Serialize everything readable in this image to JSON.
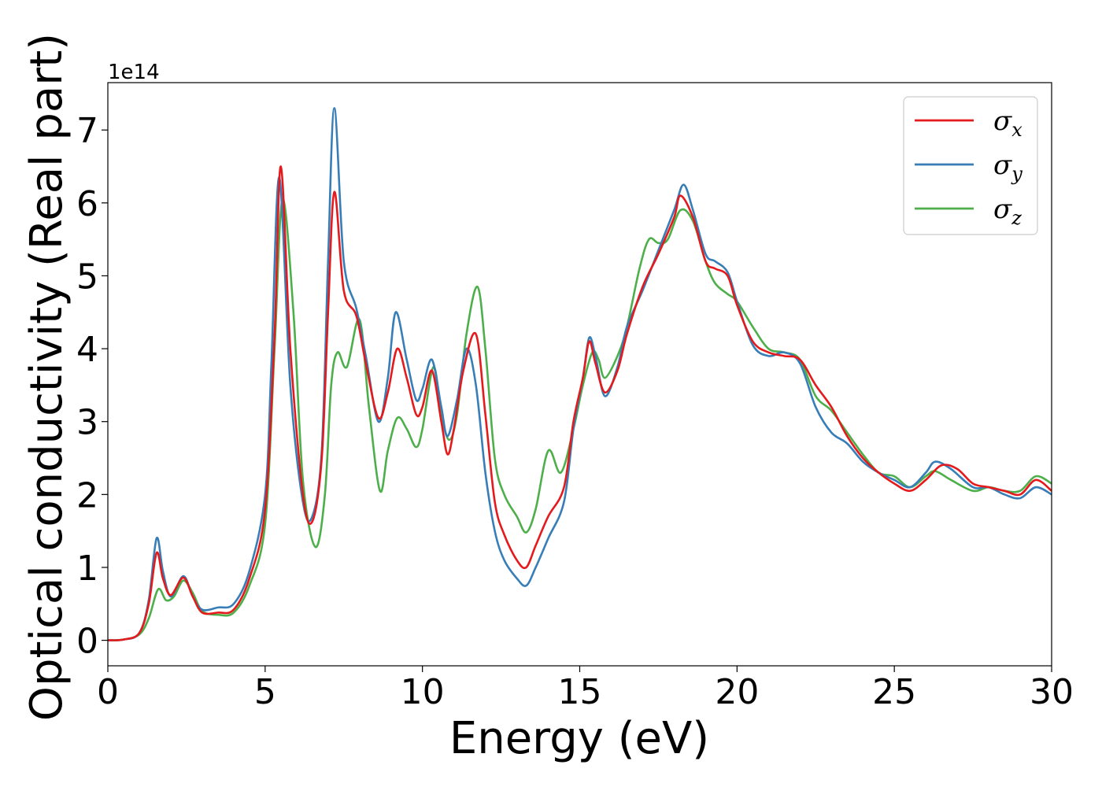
{
  "chart_data": {
    "type": "line",
    "title": "",
    "xlabel": "Energy (eV)",
    "ylabel": "Optical conductivity (Real part)",
    "y_offset_label": "1e14",
    "xlim": [
      0,
      30
    ],
    "ylim": [
      -0.35,
      7.65
    ],
    "xticks": [
      0,
      5,
      10,
      15,
      20,
      25,
      30
    ],
    "xtick_labels": [
      "0",
      "5",
      "10",
      "15",
      "20",
      "25",
      "30"
    ],
    "yticks": [
      0,
      1,
      2,
      3,
      4,
      5,
      6,
      7
    ],
    "ytick_labels": [
      "0",
      "1",
      "2",
      "3",
      "4",
      "5",
      "6",
      "7"
    ],
    "grid": false,
    "legend_position": "top-right",
    "series": [
      {
        "name": "σx",
        "symbol": "σ",
        "sub": "x",
        "color": "#e41a1c",
        "points": [
          [
            0,
            0
          ],
          [
            0.5,
            0.01
          ],
          [
            1.0,
            0.1
          ],
          [
            1.3,
            0.5
          ],
          [
            1.55,
            1.2
          ],
          [
            1.75,
            0.85
          ],
          [
            2.0,
            0.62
          ],
          [
            2.4,
            0.86
          ],
          [
            2.7,
            0.6
          ],
          [
            3.0,
            0.38
          ],
          [
            3.5,
            0.38
          ],
          [
            4.0,
            0.42
          ],
          [
            4.5,
            0.85
          ],
          [
            5.0,
            1.8
          ],
          [
            5.3,
            4.2
          ],
          [
            5.5,
            6.5
          ],
          [
            5.8,
            4.0
          ],
          [
            6.2,
            2.0
          ],
          [
            6.5,
            1.63
          ],
          [
            6.8,
            2.5
          ],
          [
            7.0,
            4.5
          ],
          [
            7.2,
            6.15
          ],
          [
            7.5,
            4.8
          ],
          [
            7.9,
            4.45
          ],
          [
            8.2,
            3.8
          ],
          [
            8.6,
            3.05
          ],
          [
            8.9,
            3.4
          ],
          [
            9.2,
            4.0
          ],
          [
            9.5,
            3.6
          ],
          [
            9.8,
            3.1
          ],
          [
            10.0,
            3.2
          ],
          [
            10.3,
            3.7
          ],
          [
            10.6,
            3.0
          ],
          [
            10.8,
            2.55
          ],
          [
            11.0,
            2.9
          ],
          [
            11.3,
            3.7
          ],
          [
            11.7,
            4.2
          ],
          [
            12.0,
            3.1
          ],
          [
            12.3,
            1.9
          ],
          [
            12.6,
            1.45
          ],
          [
            13.0,
            1.1
          ],
          [
            13.3,
            1.0
          ],
          [
            13.6,
            1.3
          ],
          [
            14.0,
            1.7
          ],
          [
            14.5,
            2.1
          ],
          [
            14.8,
            3.0
          ],
          [
            15.1,
            3.6
          ],
          [
            15.3,
            4.1
          ],
          [
            15.5,
            3.8
          ],
          [
            15.8,
            3.4
          ],
          [
            16.2,
            3.7
          ],
          [
            16.5,
            4.2
          ],
          [
            17.0,
            4.85
          ],
          [
            17.5,
            5.3
          ],
          [
            18.0,
            5.8
          ],
          [
            18.2,
            6.1
          ],
          [
            18.6,
            5.8
          ],
          [
            19.0,
            5.2
          ],
          [
            19.3,
            5.1
          ],
          [
            19.7,
            5.0
          ],
          [
            20.0,
            4.6
          ],
          [
            20.5,
            4.1
          ],
          [
            21.0,
            3.95
          ],
          [
            21.5,
            3.9
          ],
          [
            22.0,
            3.85
          ],
          [
            22.5,
            3.5
          ],
          [
            23.0,
            3.2
          ],
          [
            23.5,
            2.8
          ],
          [
            24.0,
            2.5
          ],
          [
            24.5,
            2.3
          ],
          [
            25.0,
            2.15
          ],
          [
            25.5,
            2.05
          ],
          [
            26.0,
            2.2
          ],
          [
            26.5,
            2.4
          ],
          [
            27.0,
            2.35
          ],
          [
            27.5,
            2.15
          ],
          [
            28.0,
            2.1
          ],
          [
            28.5,
            2.05
          ],
          [
            29.0,
            2.0
          ],
          [
            29.5,
            2.2
          ],
          [
            30.0,
            2.05
          ]
        ]
      },
      {
        "name": "σy",
        "symbol": "σ",
        "sub": "y",
        "color": "#377eb8",
        "points": [
          [
            0,
            0
          ],
          [
            0.5,
            0.01
          ],
          [
            1.0,
            0.1
          ],
          [
            1.3,
            0.55
          ],
          [
            1.55,
            1.4
          ],
          [
            1.75,
            0.95
          ],
          [
            2.0,
            0.6
          ],
          [
            2.4,
            0.88
          ],
          [
            2.7,
            0.6
          ],
          [
            3.0,
            0.42
          ],
          [
            3.5,
            0.45
          ],
          [
            4.0,
            0.5
          ],
          [
            4.5,
            0.95
          ],
          [
            5.0,
            2.0
          ],
          [
            5.2,
            3.8
          ],
          [
            5.45,
            6.35
          ],
          [
            5.8,
            3.5
          ],
          [
            6.2,
            1.9
          ],
          [
            6.5,
            1.7
          ],
          [
            6.8,
            2.6
          ],
          [
            7.0,
            5.2
          ],
          [
            7.2,
            7.3
          ],
          [
            7.5,
            5.2
          ],
          [
            7.9,
            4.55
          ],
          [
            8.2,
            3.9
          ],
          [
            8.6,
            3.0
          ],
          [
            8.9,
            3.6
          ],
          [
            9.15,
            4.5
          ],
          [
            9.5,
            3.85
          ],
          [
            9.8,
            3.3
          ],
          [
            10.0,
            3.45
          ],
          [
            10.3,
            3.85
          ],
          [
            10.6,
            3.2
          ],
          [
            10.8,
            2.8
          ],
          [
            11.1,
            3.3
          ],
          [
            11.4,
            4.0
          ],
          [
            11.7,
            3.5
          ],
          [
            12.0,
            2.3
          ],
          [
            12.3,
            1.5
          ],
          [
            12.6,
            1.1
          ],
          [
            13.0,
            0.85
          ],
          [
            13.3,
            0.75
          ],
          [
            13.6,
            1.0
          ],
          [
            14.0,
            1.4
          ],
          [
            14.5,
            1.9
          ],
          [
            14.8,
            2.9
          ],
          [
            15.1,
            3.6
          ],
          [
            15.3,
            4.15
          ],
          [
            15.5,
            3.9
          ],
          [
            15.8,
            3.35
          ],
          [
            16.2,
            3.75
          ],
          [
            16.5,
            4.3
          ],
          [
            17.0,
            4.8
          ],
          [
            17.5,
            5.35
          ],
          [
            18.0,
            5.9
          ],
          [
            18.3,
            6.25
          ],
          [
            18.6,
            5.9
          ],
          [
            19.0,
            5.3
          ],
          [
            19.3,
            5.2
          ],
          [
            19.7,
            5.05
          ],
          [
            20.0,
            4.65
          ],
          [
            20.5,
            4.05
          ],
          [
            21.0,
            3.9
          ],
          [
            21.5,
            3.95
          ],
          [
            22.0,
            3.8
          ],
          [
            22.5,
            3.2
          ],
          [
            23.0,
            2.85
          ],
          [
            23.5,
            2.7
          ],
          [
            24.0,
            2.45
          ],
          [
            24.5,
            2.3
          ],
          [
            25.0,
            2.2
          ],
          [
            25.5,
            2.1
          ],
          [
            26.0,
            2.3
          ],
          [
            26.3,
            2.45
          ],
          [
            26.8,
            2.35
          ],
          [
            27.5,
            2.1
          ],
          [
            28.0,
            2.1
          ],
          [
            28.5,
            2.0
          ],
          [
            29.0,
            1.95
          ],
          [
            29.5,
            2.1
          ],
          [
            30.0,
            2.0
          ]
        ]
      },
      {
        "name": "σz",
        "symbol": "σ",
        "sub": "z",
        "color": "#4daf4a",
        "points": [
          [
            0,
            0
          ],
          [
            0.5,
            0.01
          ],
          [
            1.0,
            0.08
          ],
          [
            1.3,
            0.3
          ],
          [
            1.6,
            0.7
          ],
          [
            1.85,
            0.55
          ],
          [
            2.1,
            0.6
          ],
          [
            2.4,
            0.82
          ],
          [
            2.7,
            0.65
          ],
          [
            3.0,
            0.4
          ],
          [
            3.5,
            0.35
          ],
          [
            4.0,
            0.38
          ],
          [
            4.5,
            0.75
          ],
          [
            5.0,
            1.6
          ],
          [
            5.3,
            4.0
          ],
          [
            5.55,
            6.05
          ],
          [
            5.9,
            4.5
          ],
          [
            6.2,
            2.2
          ],
          [
            6.6,
            1.28
          ],
          [
            6.9,
            2.0
          ],
          [
            7.1,
            3.5
          ],
          [
            7.3,
            3.95
          ],
          [
            7.6,
            3.75
          ],
          [
            8.0,
            4.4
          ],
          [
            8.3,
            3.2
          ],
          [
            8.65,
            2.05
          ],
          [
            8.9,
            2.6
          ],
          [
            9.2,
            3.05
          ],
          [
            9.5,
            2.9
          ],
          [
            9.8,
            2.65
          ],
          [
            10.0,
            2.9
          ],
          [
            10.35,
            3.75
          ],
          [
            10.6,
            3.1
          ],
          [
            10.85,
            2.75
          ],
          [
            11.1,
            3.1
          ],
          [
            11.4,
            4.2
          ],
          [
            11.75,
            4.85
          ],
          [
            12.0,
            4.0
          ],
          [
            12.3,
            2.5
          ],
          [
            12.6,
            2.0
          ],
          [
            13.0,
            1.7
          ],
          [
            13.3,
            1.48
          ],
          [
            13.6,
            1.8
          ],
          [
            14.0,
            2.6
          ],
          [
            14.4,
            2.3
          ],
          [
            14.8,
            2.9
          ],
          [
            15.1,
            3.5
          ],
          [
            15.4,
            3.95
          ],
          [
            15.6,
            3.85
          ],
          [
            15.8,
            3.6
          ],
          [
            16.2,
            3.9
          ],
          [
            16.5,
            4.3
          ],
          [
            16.9,
            5.1
          ],
          [
            17.2,
            5.5
          ],
          [
            17.5,
            5.45
          ],
          [
            17.8,
            5.5
          ],
          [
            18.2,
            5.9
          ],
          [
            18.6,
            5.75
          ],
          [
            19.0,
            5.2
          ],
          [
            19.3,
            4.9
          ],
          [
            19.7,
            4.75
          ],
          [
            20.0,
            4.65
          ],
          [
            20.5,
            4.3
          ],
          [
            21.0,
            4.0
          ],
          [
            21.5,
            3.95
          ],
          [
            22.0,
            3.85
          ],
          [
            22.5,
            3.35
          ],
          [
            23.0,
            3.15
          ],
          [
            23.5,
            2.85
          ],
          [
            24.0,
            2.55
          ],
          [
            24.5,
            2.3
          ],
          [
            25.0,
            2.25
          ],
          [
            25.5,
            2.1
          ],
          [
            26.0,
            2.25
          ],
          [
            26.3,
            2.32
          ],
          [
            26.8,
            2.2
          ],
          [
            27.5,
            2.05
          ],
          [
            28.0,
            2.1
          ],
          [
            28.5,
            2.05
          ],
          [
            29.0,
            2.05
          ],
          [
            29.5,
            2.25
          ],
          [
            30.0,
            2.15
          ]
        ]
      }
    ]
  }
}
